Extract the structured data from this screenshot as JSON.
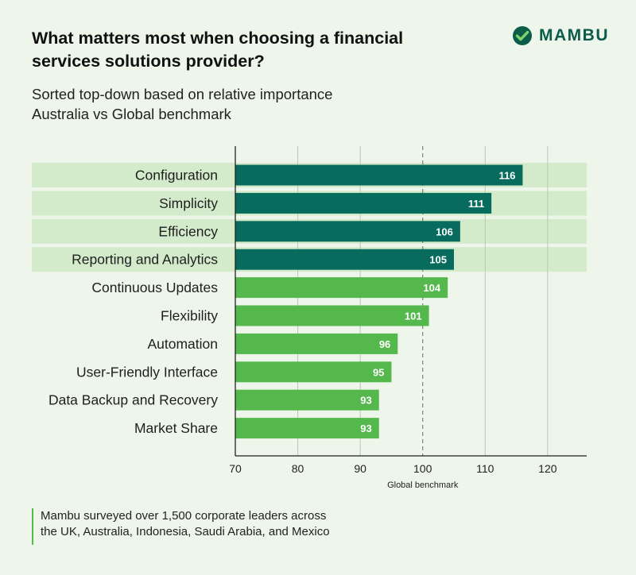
{
  "header": {
    "title": "What matters most when choosing a financial services solutions provider?",
    "subtitle_line1": "Sorted top-down based on relative importance",
    "subtitle_line2": "Australia vs Global benchmark"
  },
  "brand": {
    "name": "MAMBU",
    "logo_icon": "mambu-check-icon"
  },
  "footnote": {
    "line1": "Mambu surveyed over 1,500 corporate leaders across",
    "line2": "the UK, Australia, Indonesia, Saudi Arabia, and Mexico"
  },
  "colors": {
    "top_bar": "#076b5d",
    "other_bar": "#55b84c",
    "highlight_band": "#d3ebca",
    "brand": "#0c5c4a"
  },
  "chart_data": {
    "type": "bar",
    "orientation": "horizontal",
    "categories": [
      "Configuration",
      "Simplicity",
      "Efficiency",
      "Reporting and Analytics",
      "Continuous Updates",
      "Flexibility",
      "Automation",
      "User-Friendly Interface",
      "Data Backup and Recovery",
      "Market Share"
    ],
    "values": [
      116,
      111,
      106,
      105,
      104,
      101,
      96,
      95,
      93,
      93
    ],
    "highlighted_count": 4,
    "xlim": [
      70,
      126
    ],
    "xticks": [
      70,
      80,
      90,
      100,
      110,
      120
    ],
    "benchmark": {
      "value": 100,
      "label": "Global benchmark"
    },
    "grid": true
  }
}
